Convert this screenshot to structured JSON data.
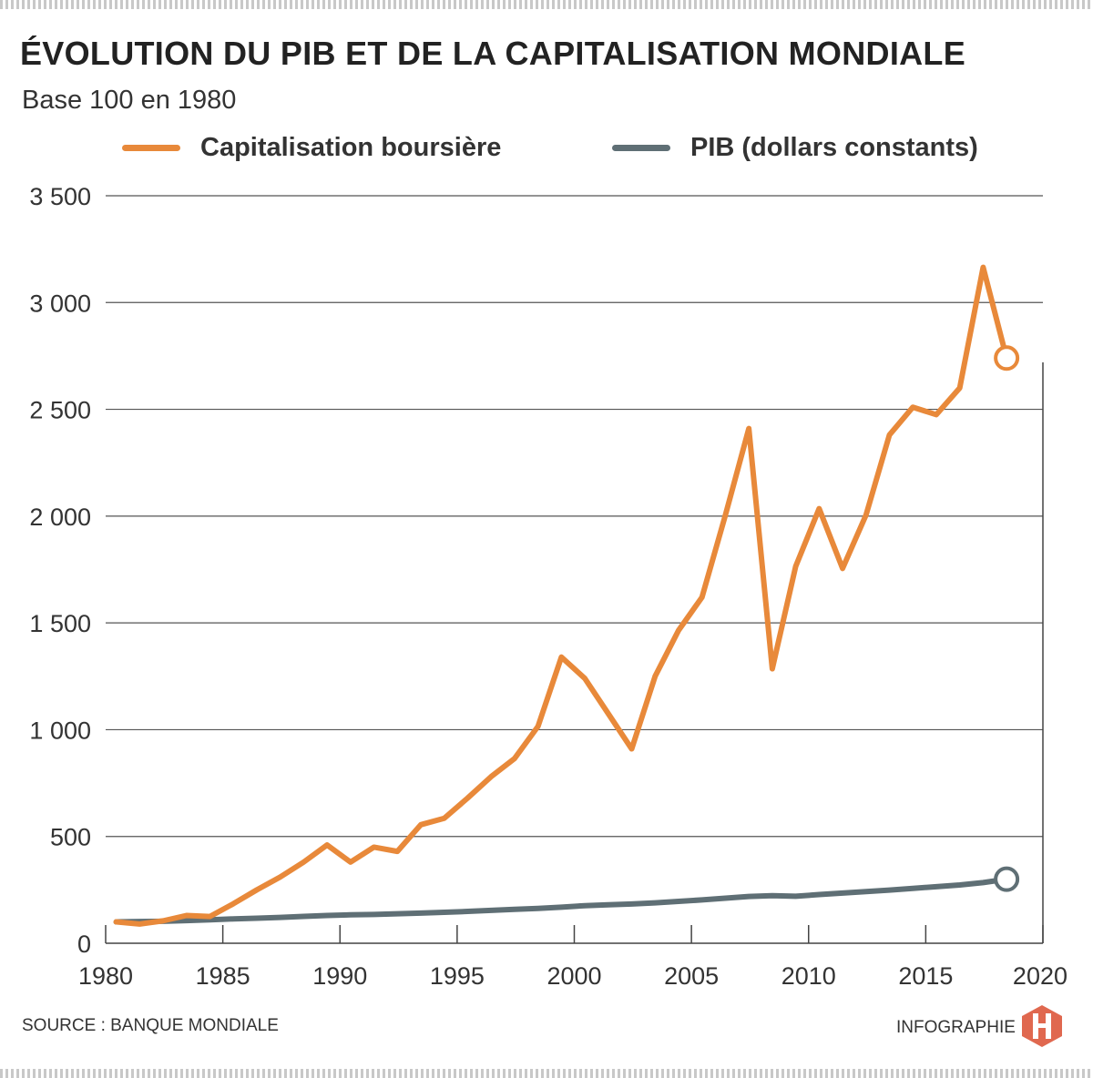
{
  "title": "ÉVOLUTION DU PIB ET DE LA CAPITALISATION MONDIALE",
  "subtitle": "Base 100 en 1980",
  "source": "SOURCE : BANQUE MONDIALE",
  "credit": "INFOGRAPHIE",
  "logo_letter": "H",
  "colors": {
    "cap": "#e8893a",
    "pib": "#5f6f75",
    "grid": "#555555",
    "logo": "#e0684f"
  },
  "chart_data": {
    "type": "line",
    "title": "ÉVOLUTION DU PIB ET DE LA CAPITALISATION MONDIALE",
    "subtitle": "Base 100 en 1980",
    "xlim": [
      1980,
      2020
    ],
    "ylim": [
      0,
      3500
    ],
    "xticks": [
      1980,
      1985,
      1990,
      1995,
      2000,
      2005,
      2010,
      2015,
      2020
    ],
    "yticks": [
      0,
      500,
      1000,
      1500,
      2000,
      2500,
      3000,
      3500
    ],
    "ytick_labels": [
      "0",
      "500",
      "1 000",
      "1 500",
      "2 000",
      "2 500",
      "3 000",
      "3 500"
    ],
    "grid": "horizontal",
    "legend_position": "top",
    "x": [
      1980,
      1981,
      1982,
      1983,
      1984,
      1985,
      1986,
      1987,
      1988,
      1989,
      1990,
      1991,
      1992,
      1993,
      1994,
      1995,
      1996,
      1997,
      1998,
      1999,
      2000,
      2001,
      2002,
      2003,
      2004,
      2005,
      2006,
      2007,
      2008,
      2009,
      2010,
      2011,
      2012,
      2013,
      2014,
      2015,
      2016,
      2017,
      2018
    ],
    "series": [
      {
        "name": "Capitalisation boursière",
        "color": "#e8893a",
        "values": [
          100,
          90,
          105,
          130,
          125,
          185,
          250,
          310,
          380,
          460,
          380,
          450,
          430,
          555,
          585,
          680,
          780,
          865,
          1015,
          1340,
          1240,
          1075,
          910,
          1250,
          1465,
          1620,
          2005,
          2410,
          1285,
          1765,
          2035,
          1755,
          2005,
          2380,
          2510,
          2475,
          2600,
          3165,
          2740
        ]
      },
      {
        "name": "PIB (dollars constants)",
        "color": "#5f6f75",
        "values": [
          100,
          102,
          103,
          106,
          110,
          114,
          117,
          121,
          126,
          130,
          133,
          135,
          138,
          141,
          145,
          149,
          154,
          159,
          163,
          169,
          176,
          180,
          184,
          189,
          196,
          203,
          211,
          219,
          223,
          220,
          228,
          235,
          242,
          249,
          257,
          265,
          273,
          284,
          300
        ]
      }
    ]
  }
}
